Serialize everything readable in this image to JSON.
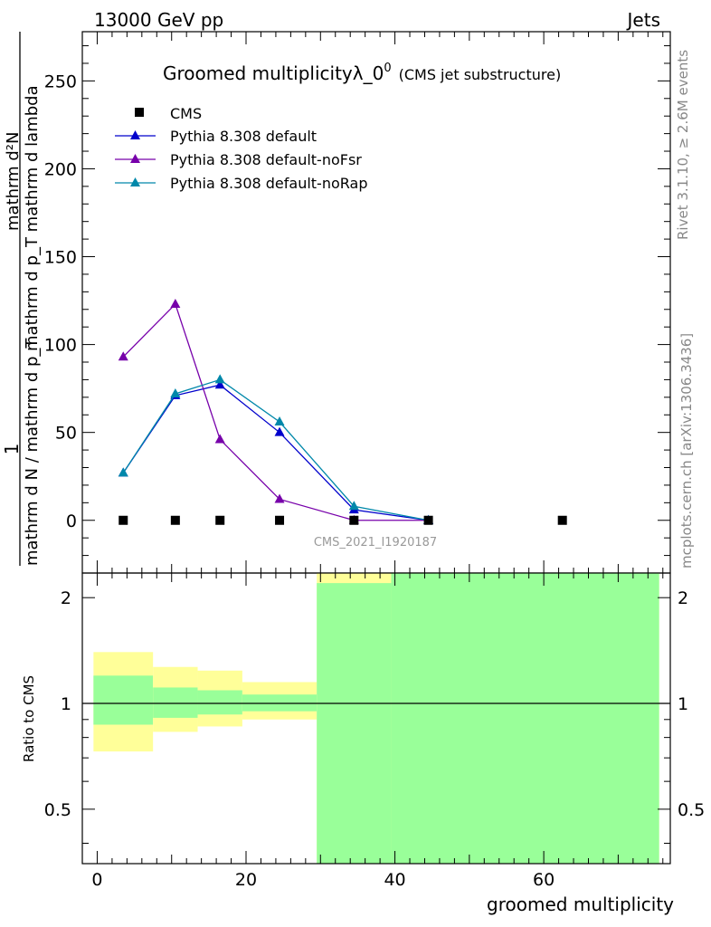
{
  "header": {
    "energy_label": "13000 GeV pp",
    "process_label": "Jets"
  },
  "side_labels": {
    "rivet": "Rivet 3.1.10, ≥ 2.6M events",
    "mcplots": "mcplots.cern.ch [arXiv:1306.3436]"
  },
  "analysis_id": "CMS_2021_I1920187",
  "colors": {
    "cms": "#000000",
    "default": "#0000cc",
    "noFsr": "#7700aa",
    "noRap": "#0088aa",
    "band_yellow": "#ffff99",
    "band_green": "#99ff99"
  },
  "chart_data": [
    {
      "type": "line",
      "title": "Groomed multiplicityλ_0",
      "title_sup": "0",
      "title_suffix": "(CMS jet substructure)",
      "ylabel_top": "1",
      "ylabel_top_num": "mathrm d²N",
      "ylabel_top_den": "mathrm d p_T mathrm d lambda",
      "ylabel_bottom": "mathrm d N / mathrm d p_T",
      "xlim": [
        -2,
        77
      ],
      "ylim": [
        -30,
        278
      ],
      "yticks": [
        0,
        50,
        100,
        150,
        200,
        250
      ],
      "series": [
        {
          "name": "CMS",
          "marker": "square",
          "x": [
            3.5,
            10.5,
            16.5,
            24.5,
            34.5,
            44.5,
            62.5
          ],
          "y": [
            0,
            0,
            0,
            0,
            0,
            0,
            0
          ]
        },
        {
          "name": "Pythia 8.308 default",
          "marker": "triangle",
          "x": [
            3.5,
            10.5,
            16.5,
            24.5,
            34.5,
            44.5
          ],
          "y": [
            27,
            71,
            77,
            50,
            6,
            0
          ]
        },
        {
          "name": "Pythia 8.308 default-noFsr",
          "marker": "triangle",
          "x": [
            3.5,
            10.5,
            16.5,
            24.5,
            34.5,
            44.5
          ],
          "y": [
            93,
            123,
            46,
            12,
            0,
            0
          ]
        },
        {
          "name": "Pythia 8.308 default-noRap",
          "marker": "triangle",
          "x": [
            3.5,
            10.5,
            16.5,
            24.5,
            34.5,
            44.5
          ],
          "y": [
            27,
            72,
            80,
            56,
            8,
            0
          ]
        }
      ]
    },
    {
      "type": "area",
      "ylabel": "Ratio to CMS",
      "xlabel": "groomed multiplicity",
      "xlim": [
        -2,
        77
      ],
      "ylim": [
        0.35,
        2.35
      ],
      "xticks": [
        0,
        20,
        40,
        60
      ],
      "yticks": [
        0.5,
        1,
        2
      ],
      "reference_line": 1,
      "bands": [
        {
          "x0": -0.5,
          "x1": 7.5,
          "yellow": [
            0.73,
            1.4
          ],
          "green": [
            0.87,
            1.2
          ]
        },
        {
          "x0": 7.5,
          "x1": 13.5,
          "yellow": [
            0.83,
            1.27
          ],
          "green": [
            0.91,
            1.11
          ]
        },
        {
          "x0": 13.5,
          "x1": 19.5,
          "yellow": [
            0.86,
            1.24
          ],
          "green": [
            0.93,
            1.09
          ]
        },
        {
          "x0": 19.5,
          "x1": 29.5,
          "yellow": [
            0.9,
            1.15
          ],
          "green": [
            0.95,
            1.06
          ]
        },
        {
          "x0": 29.5,
          "x1": 39.5,
          "yellow": [
            0.35,
            2.35
          ],
          "green": [
            0.35,
            2.2
          ]
        },
        {
          "x0": 39.5,
          "x1": 75.5,
          "yellow": [
            0.35,
            2.35
          ],
          "green": [
            0.35,
            2.35
          ]
        }
      ]
    }
  ]
}
